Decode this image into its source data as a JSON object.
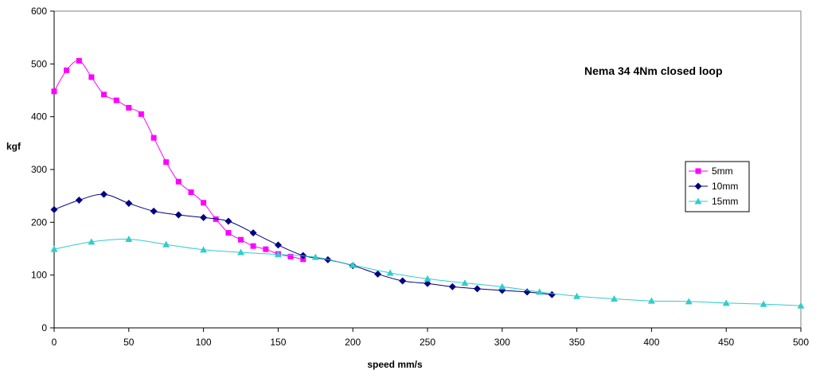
{
  "chart_data": {
    "type": "line",
    "title": "Nema 34 4Nm closed loop",
    "xlabel": "speed mm/s",
    "ylabel": "kgf",
    "xlim": [
      0,
      500
    ],
    "ylim": [
      0,
      600
    ],
    "xticks": [
      0,
      50,
      100,
      150,
      200,
      250,
      300,
      350,
      400,
      450,
      500
    ],
    "yticks": [
      0,
      100,
      200,
      300,
      400,
      500,
      600
    ],
    "grid": false,
    "legend_position": "right",
    "series": [
      {
        "name": "5mm",
        "color": "#ff00ff",
        "marker": "square",
        "x": [
          0,
          8.3,
          16.7,
          25,
          33.3,
          41.7,
          50,
          58.3,
          66.7,
          75,
          83.3,
          91.7,
          100,
          108.3,
          116.7,
          125,
          133.3,
          141.7,
          150,
          158.3,
          166.7
        ],
        "y": [
          448,
          488,
          506,
          475,
          442,
          431,
          417,
          405,
          360,
          314,
          277,
          257,
          237,
          206,
          180,
          167,
          155,
          149,
          140,
          135,
          130
        ]
      },
      {
        "name": "10mm",
        "color": "#000080",
        "marker": "diamond",
        "x": [
          0,
          16.7,
          33.3,
          50,
          66.7,
          83.3,
          100,
          116.7,
          133.3,
          150,
          166.7,
          183.3,
          200,
          216.7,
          233.3,
          250,
          266.7,
          283.3,
          300,
          316.7,
          333.3
        ],
        "y": [
          224,
          242,
          253,
          236,
          221,
          214,
          209,
          202,
          180,
          157,
          137,
          129,
          118,
          102,
          89,
          84,
          78,
          74,
          71,
          68,
          63
        ]
      },
      {
        "name": "15mm",
        "color": "#33cccc",
        "marker": "triangle",
        "x": [
          0,
          25,
          50,
          75,
          100,
          125,
          150,
          175,
          200,
          225,
          250,
          275,
          300,
          325,
          350,
          375,
          400,
          425,
          450,
          475,
          500
        ],
        "y": [
          149,
          163,
          168,
          158,
          148,
          143,
          139,
          134,
          119,
          104,
          93,
          85,
          78,
          68,
          60,
          55,
          51,
          50,
          47,
          45,
          42
        ]
      }
    ]
  }
}
